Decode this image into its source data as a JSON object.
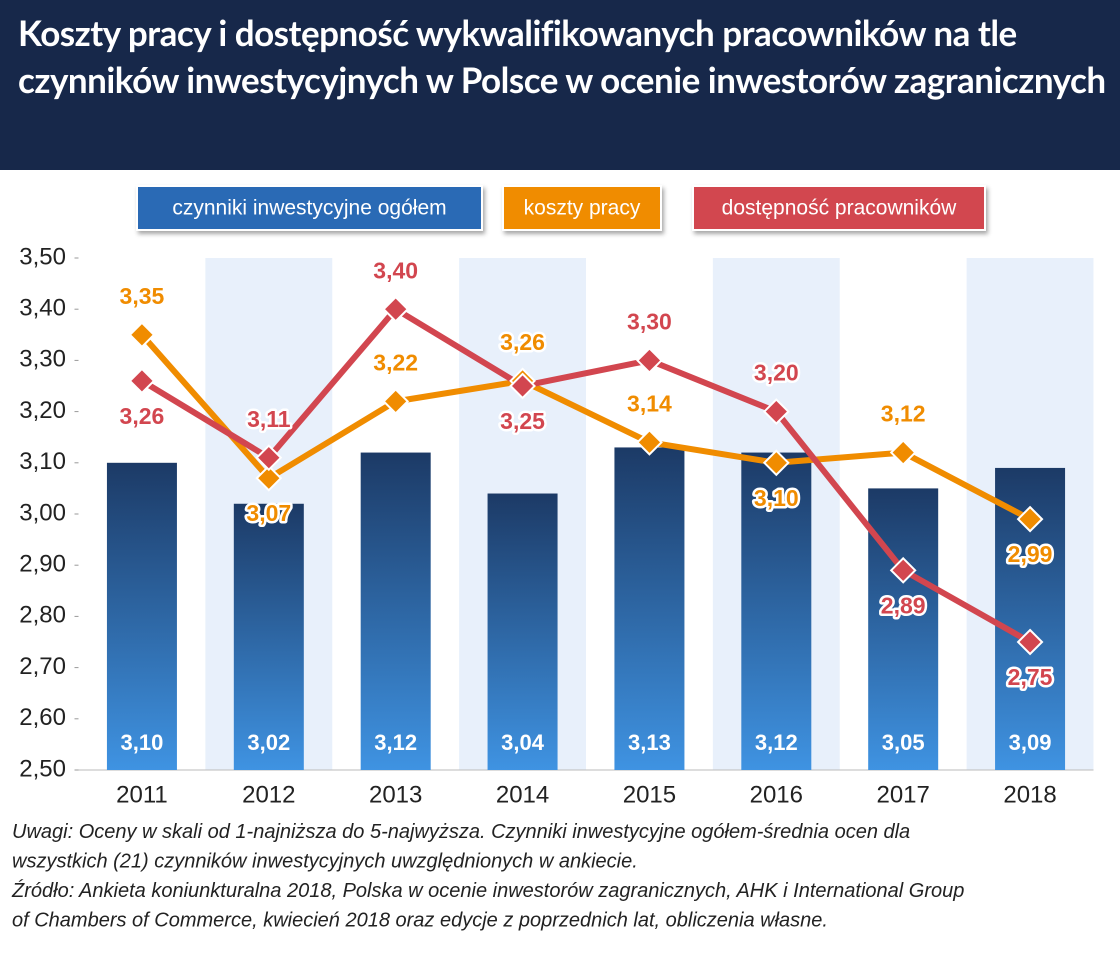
{
  "chart_data": {
    "type": "bar-line",
    "title": "Koszty pracy i dostępność wykwalifikowanych pracowników na tle czynników inwestycyjnych w Polsce w ocenie inwestorów zagranicznych",
    "categories": [
      "2011",
      "2012",
      "2013",
      "2014",
      "2015",
      "2016",
      "2017",
      "2018"
    ],
    "series": [
      {
        "name": "czynniki inwestycyjne ogółem",
        "type": "bar",
        "color": "#2a6bb5",
        "values": [
          3.1,
          3.02,
          3.12,
          3.04,
          3.13,
          3.12,
          3.05,
          3.09
        ],
        "value_labels": [
          "3,10",
          "3,02",
          "3,12",
          "3,04",
          "3,13",
          "3,12",
          "3,05",
          "3,09"
        ]
      },
      {
        "name": "koszty pracy",
        "type": "line",
        "color": "#f08c00",
        "values": [
          3.35,
          3.07,
          3.22,
          3.26,
          3.14,
          3.1,
          3.12,
          2.99
        ],
        "value_labels": [
          "3,35",
          "3,07",
          "3,22",
          "3,26",
          "3,14",
          "3,10",
          "3,12",
          "2,99"
        ]
      },
      {
        "name": "dostępność pracowników",
        "type": "line",
        "color": "#d2464f",
        "values": [
          3.26,
          3.11,
          3.4,
          3.25,
          3.3,
          3.2,
          2.89,
          2.75
        ],
        "value_labels": [
          "3,26",
          "3,11",
          "3,40",
          "3,25",
          "3,30",
          "3,20",
          "2,89",
          "2,75"
        ]
      }
    ],
    "ylim": [
      2.5,
      3.5
    ],
    "yticks": [
      {
        "value": 2.5,
        "label": "2,50"
      },
      {
        "value": 2.6,
        "label": "2,60"
      },
      {
        "value": 2.7,
        "label": "2,70"
      },
      {
        "value": 2.8,
        "label": "2,80"
      },
      {
        "value": 2.9,
        "label": "2,90"
      },
      {
        "value": 3.0,
        "label": "3,00"
      },
      {
        "value": 3.1,
        "label": "3,10"
      },
      {
        "value": 3.2,
        "label": "3,20"
      },
      {
        "value": 3.3,
        "label": "3,30"
      },
      {
        "value": 3.4,
        "label": "3,40"
      },
      {
        "value": 3.5,
        "label": "3,50"
      }
    ],
    "grid": false,
    "notes": [
      "Uwagi: Oceny w skali od 1-najniższa do 5-najwyższa. Czynniki inwestycyjne ogółem-średnia ocen dla",
      "wszystkich (21) czynników inwestycyjnych uwzględnionych w ankiecie.",
      "Źródło: Ankieta koniunkturalna 2018, Polska w ocenie inwestorów zagranicznych, AHK i International Group",
      "of Chambers of Commerce, kwiecień 2018 oraz edycje z poprzednich lat, obliczenia własne."
    ]
  }
}
